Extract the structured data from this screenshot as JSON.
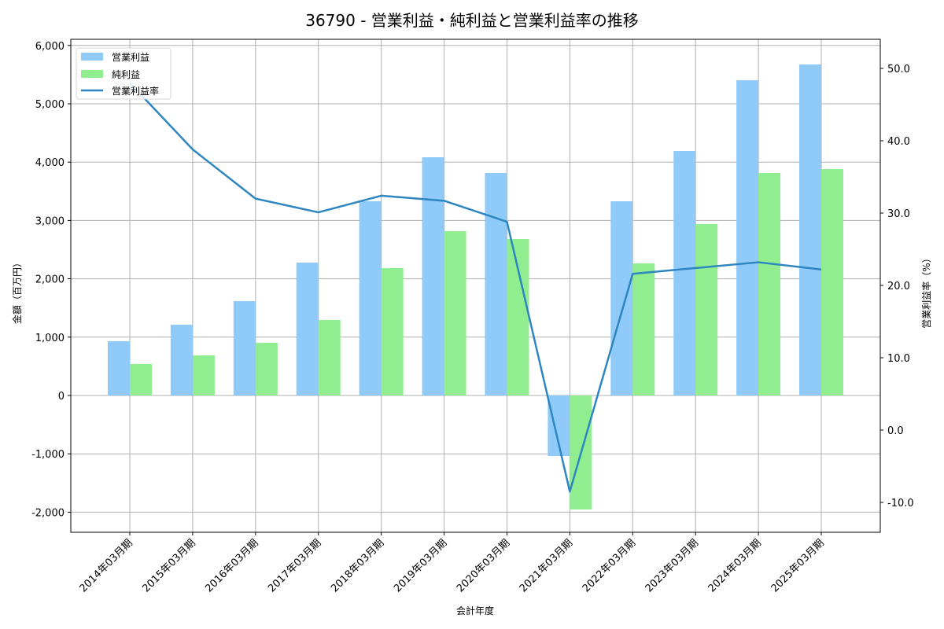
{
  "chart_data": {
    "type": "bar",
    "title": "36790 - 営業利益・純利益と営業利益率の推移",
    "xlabel": "会計年度",
    "ylabel": "金額（百万円）",
    "ylabel_right": "営業利益率（%）",
    "categories": [
      "2014年03月期",
      "2015年03月期",
      "2016年03月期",
      "2017年03月期",
      "2018年03月期",
      "2019年03月期",
      "2020年03月期",
      "2021年03月期",
      "2022年03月期",
      "2023年03月期",
      "2024年03月期",
      "2025年03月期"
    ],
    "series": [
      {
        "name": "営業利益",
        "type": "bar",
        "axis": "left",
        "color": "#90CAF9",
        "values": [
          930,
          1213,
          1617,
          2278,
          3329,
          4084,
          3814,
          -1038,
          3329,
          4191,
          5404,
          5674
        ]
      },
      {
        "name": "純利益",
        "type": "bar",
        "axis": "left",
        "color": "#90EE90",
        "values": [
          540,
          687,
          903,
          1294,
          2183,
          2817,
          2682,
          -1954,
          2264,
          2938,
          3814,
          3881
        ]
      },
      {
        "name": "営業利益率",
        "type": "line",
        "axis": "right",
        "color": "#2E86C1",
        "values": [
          48.0,
          38.8,
          32.0,
          30.1,
          32.4,
          31.7,
          28.8,
          -8.5,
          21.6,
          22.4,
          23.2,
          22.2
        ]
      }
    ],
    "ylim": [
      -2350,
      6050
    ],
    "ylim_right": [
      -14.5,
      54.5
    ],
    "yticks": [
      -2000,
      -1000,
      0,
      1000,
      2000,
      3000,
      4000,
      5000,
      6000
    ],
    "yticks_labels": [
      "-2,000",
      "-1,000",
      "0",
      "1,000",
      "2,000",
      "3,000",
      "4,000",
      "5,000",
      "6,000"
    ],
    "yticks_right": [
      -10,
      0,
      10,
      20,
      30,
      40,
      50
    ],
    "yticks_right_labels": [
      "-10.0",
      "0.0",
      "10.0",
      "20.0",
      "30.0",
      "40.0",
      "50.0"
    ],
    "grid": true,
    "legend_position": "upper left"
  }
}
